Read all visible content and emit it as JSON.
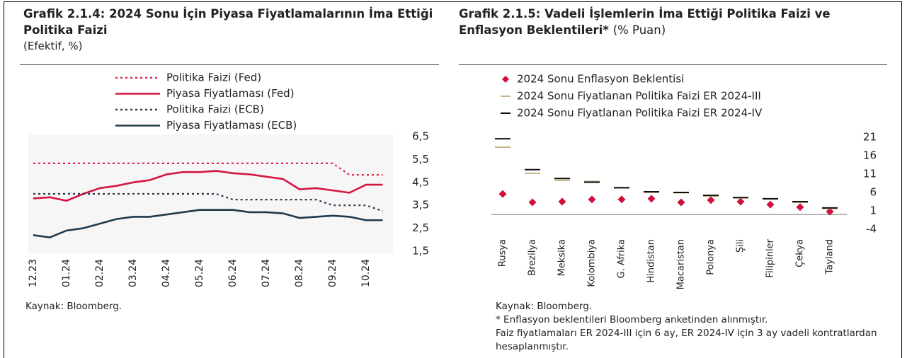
{
  "chart_data": [
    {
      "type": "line",
      "title": "Grafik 2.1.4: 2024 Sonu İçin Piyasa Fiyatlamalarının İma Ettiği Politika Faizi",
      "subtitle": "(Efektif, %)",
      "source": "Kaynak: Bloomberg.",
      "categories": [
        "12.23",
        null,
        "01.24",
        null,
        "02.24",
        null,
        "03.24",
        null,
        "04.24",
        null,
        "05.24",
        null,
        "06.24",
        null,
        "07.24",
        null,
        "08.24",
        null,
        "09.24",
        null,
        "10.24",
        null
      ],
      "series": [
        {
          "name": "Politika Faizi (Fed)",
          "color": "#e0254a",
          "line_style": "dotted",
          "values": [
            5.33,
            5.33,
            5.33,
            5.33,
            5.33,
            5.33,
            5.33,
            5.33,
            5.33,
            5.33,
            5.33,
            5.33,
            5.33,
            5.33,
            5.33,
            5.33,
            5.33,
            5.33,
            5.33,
            4.83,
            4.83,
            4.83
          ]
        },
        {
          "name": "Piyasa Fiyatlaması (Fed)",
          "color": "#d6163f",
          "line_style": "solid",
          "values": [
            3.8,
            3.85,
            3.7,
            4.0,
            4.25,
            4.35,
            4.5,
            4.6,
            4.85,
            4.95,
            4.95,
            5.0,
            4.9,
            4.85,
            4.75,
            4.65,
            4.2,
            4.25,
            4.15,
            4.05,
            4.4,
            4.4
          ]
        },
        {
          "name": "Politika Faizi (ECB)",
          "color": "#2a3b4c",
          "line_style": "dotted",
          "values": [
            4.0,
            4.0,
            4.0,
            4.0,
            4.0,
            4.0,
            4.0,
            4.0,
            4.0,
            4.0,
            4.0,
            4.0,
            3.75,
            3.75,
            3.75,
            3.75,
            3.75,
            3.75,
            3.5,
            3.5,
            3.5,
            3.25
          ]
        },
        {
          "name": "Piyasa Fiyatlaması (ECB)",
          "color": "#1f3a4d",
          "line_style": "solid",
          "values": [
            2.2,
            2.1,
            2.4,
            2.5,
            2.7,
            2.9,
            3.0,
            3.0,
            3.1,
            3.2,
            3.3,
            3.3,
            3.3,
            3.2,
            3.2,
            3.15,
            2.95,
            3.0,
            3.05,
            3.0,
            2.85,
            2.85
          ]
        }
      ],
      "ylim": [
        1.5,
        6.5
      ],
      "yticks": [
        {
          "value": 6.5,
          "label": "6,5"
        },
        {
          "value": 5.5,
          "label": "5,5"
        },
        {
          "value": 4.5,
          "label": "4,5"
        },
        {
          "value": 3.5,
          "label": "3,5"
        },
        {
          "value": 2.5,
          "label": "2,5"
        },
        {
          "value": 1.5,
          "label": "1,5"
        }
      ],
      "legend": "top"
    },
    {
      "type": "marker",
      "title": "Grafik 2.1.5: Vadeli İşlemlerin İma Ettiği Politika Faizi ve Enflasyon Beklentileri*",
      "subtitle": "(% Puan)",
      "source": "Kaynak: Bloomberg.",
      "notes": [
        "* Enflasyon beklentileri Bloomberg anketinden alınmıştır.",
        "Faiz fiyatlamaları ER 2024-III için 6 ay, ER 2024-IV için 3 ay vadeli kontratlardan hesaplanmıştır."
      ],
      "categories": [
        "Rusya",
        "Brezilya",
        "Meksika",
        "Kolombiya",
        "G. Afrika",
        "Hindistan",
        "Macaristan",
        "Polonya",
        "Şili",
        "Filipinler",
        "Çekya",
        "Tayland"
      ],
      "series": [
        {
          "name": "2024 Sonu Enflasyon Beklentisi",
          "color": "#d0103a",
          "marker": "diamond",
          "values": [
            5.6,
            3.3,
            3.5,
            4.1,
            4.1,
            4.3,
            3.3,
            3.9,
            3.5,
            2.7,
            2.0,
            0.8
          ]
        },
        {
          "name": "2024 Sonu Fiyatlanan Politika Faizi ER 2024-III",
          "color": "#c8b48a",
          "marker": "dash",
          "values": [
            18.3,
            11.2,
            9.3,
            9.0,
            7.2,
            6.0,
            5.9,
            5.0,
            4.5,
            4.2,
            3.3,
            1.6
          ]
        },
        {
          "name": "2024 Sonu Fiyatlanan Politika Faizi ER 2024-IV",
          "color": "#111111",
          "marker": "dash",
          "values": [
            20.6,
            12.2,
            9.8,
            8.8,
            7.3,
            6.2,
            6.0,
            5.2,
            4.6,
            4.3,
            3.5,
            1.8
          ]
        }
      ],
      "ylim": [
        -4,
        21
      ],
      "yticks": [
        21,
        16,
        11,
        6,
        1,
        -4
      ],
      "legend": "top"
    }
  ]
}
